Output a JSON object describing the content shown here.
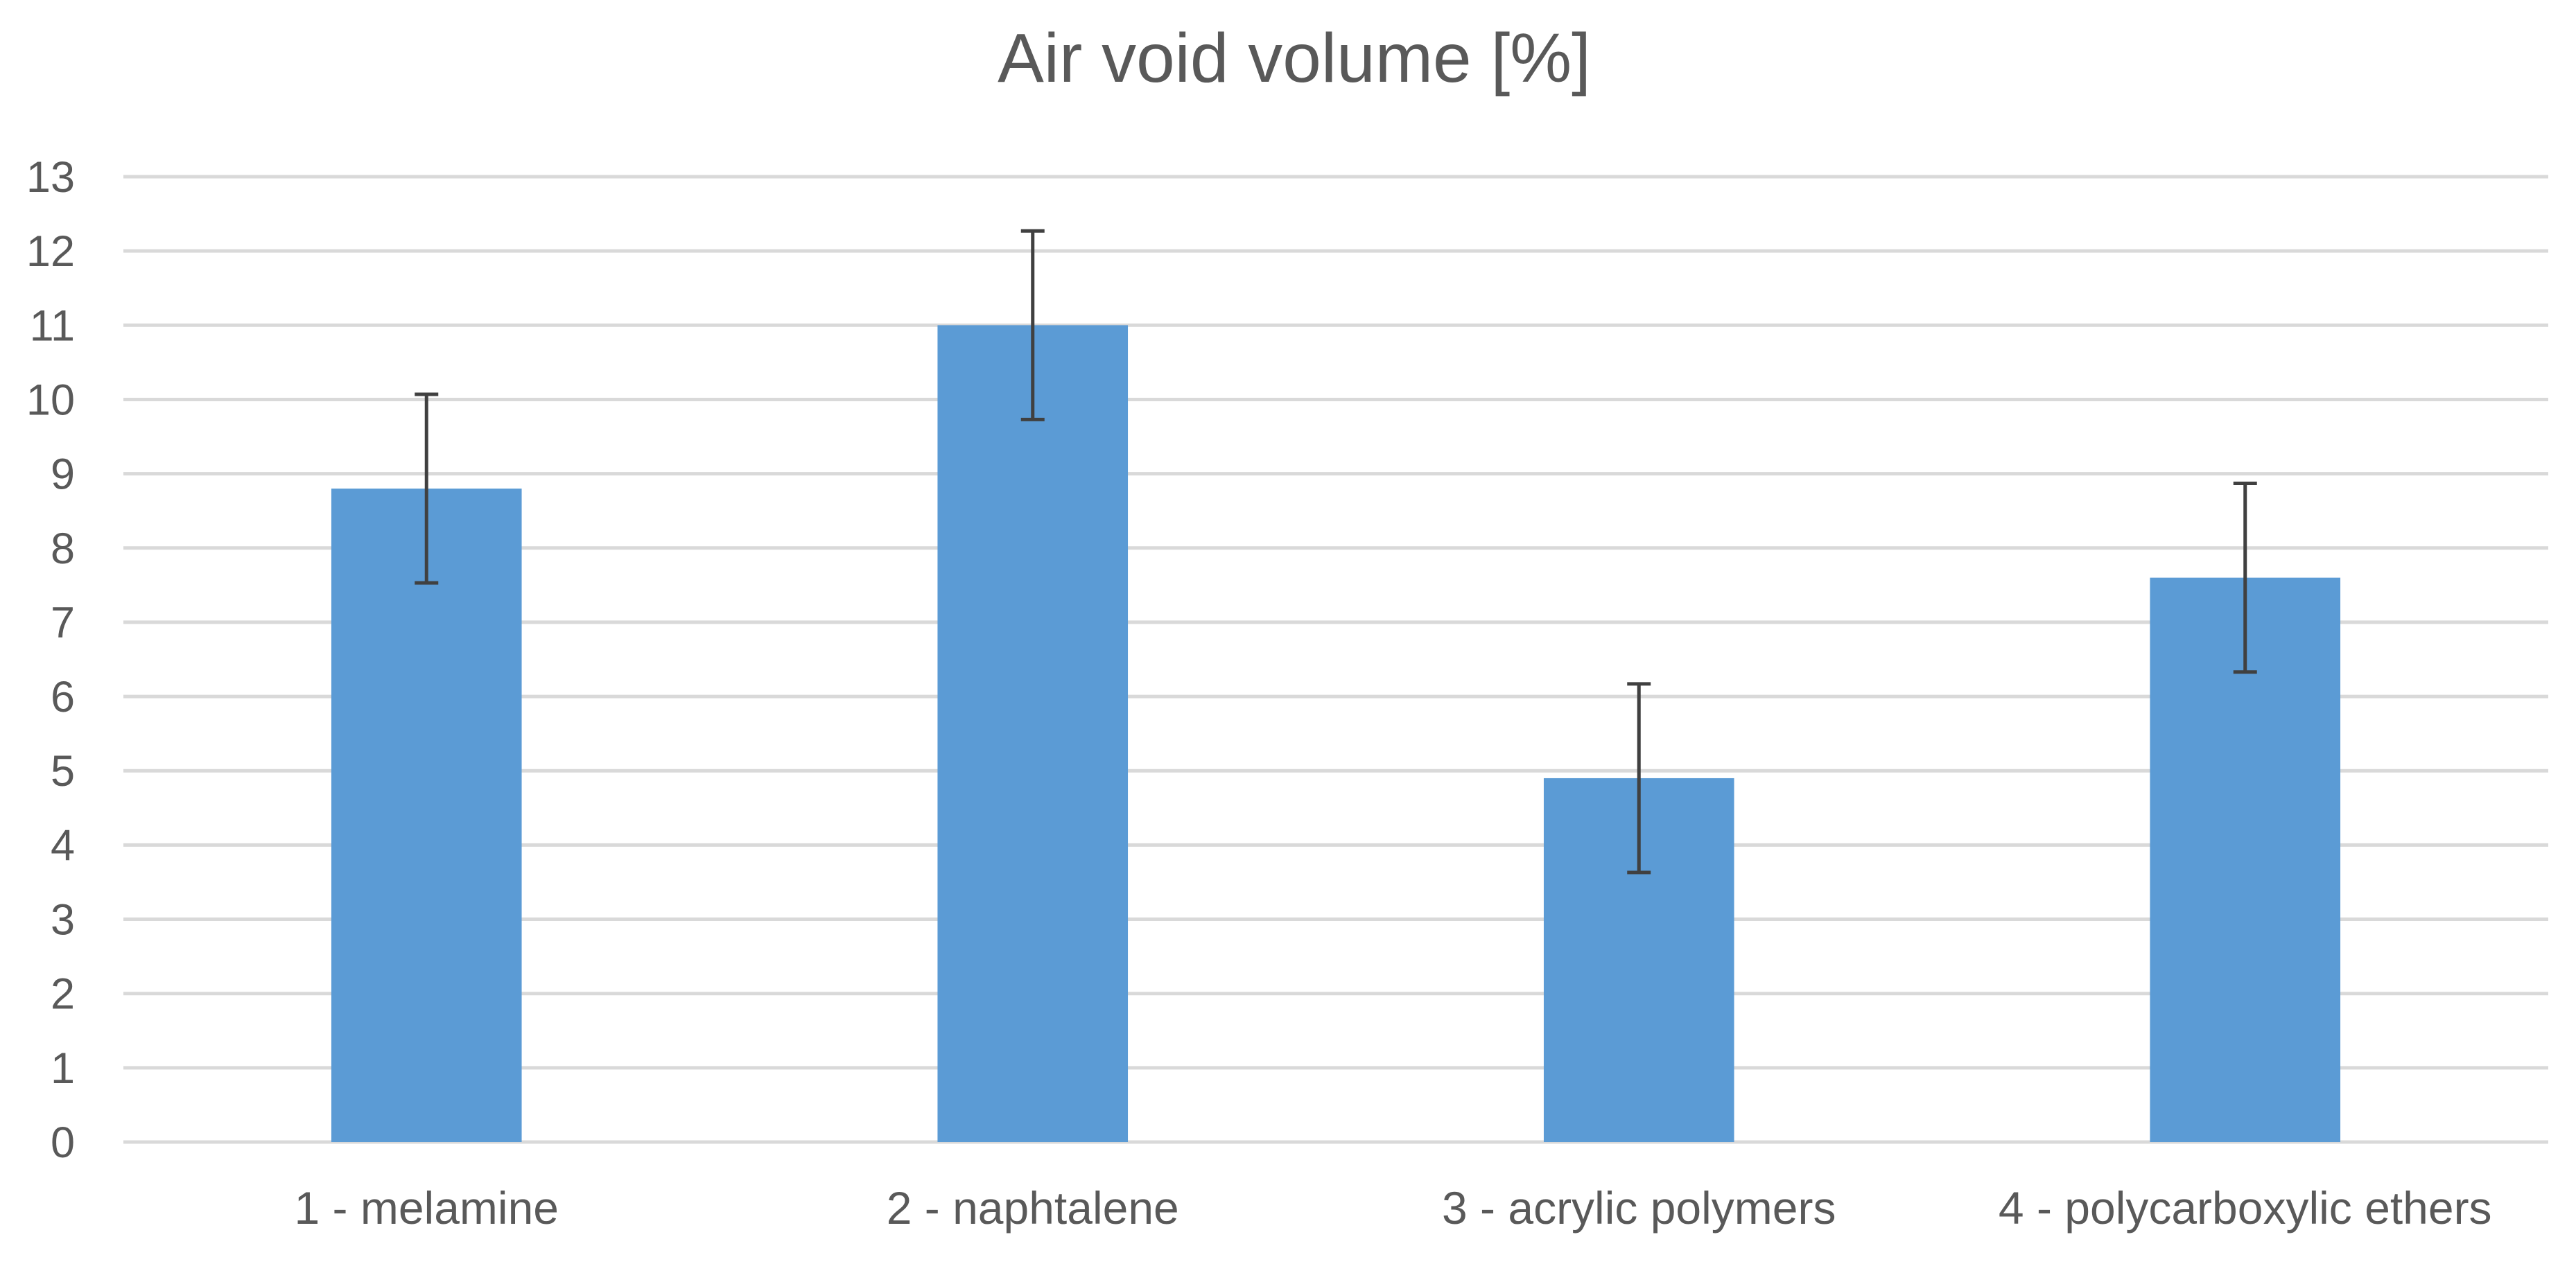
{
  "chart_data": {
    "type": "bar",
    "title": "Air void volume [%]",
    "xlabel": "",
    "ylabel": "",
    "categories": [
      "1 - melamine",
      "2 - naphtalene",
      "3 - acrylic polymers",
      "4 - polycarboxylic ethers"
    ],
    "values": [
      8.8,
      11.0,
      4.9,
      7.6
    ],
    "error_bars": [
      1.27,
      1.27,
      1.27,
      1.27
    ],
    "ylim": [
      0,
      13
    ],
    "yticks": [
      0,
      1,
      2,
      3,
      4,
      5,
      6,
      7,
      8,
      9,
      10,
      11,
      12,
      13
    ],
    "grid": true,
    "legend": "none",
    "colors": {
      "bar": "#5b9bd5",
      "error_bar": "#404040",
      "grid": "#d9d9d9",
      "text": "#595959"
    }
  }
}
